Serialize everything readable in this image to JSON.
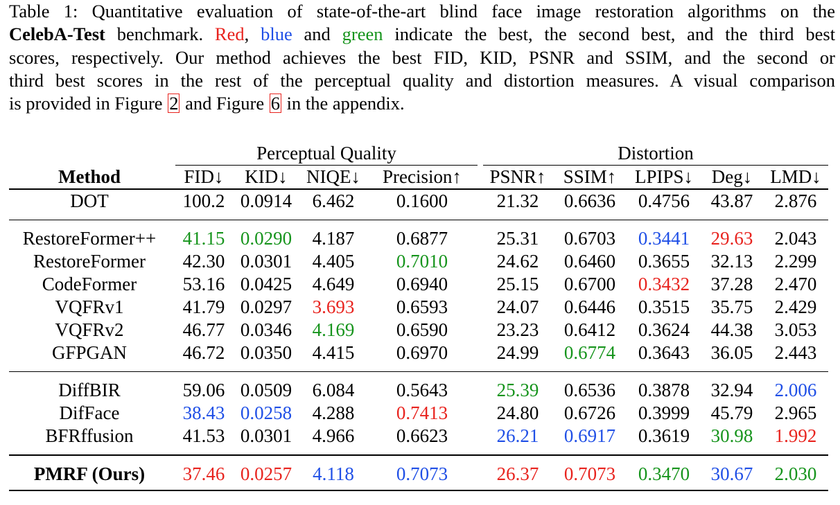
{
  "caption": {
    "label": "Table 1:",
    "line1_rest": "Quantitative evaluation of state-of-the-art blind face image restoration algorithms on the",
    "benchmark": "CelebA-Test",
    "line2_a": "benchmark.",
    "word_red": "Red",
    "comma": ",",
    "word_blue": "blue",
    "and": "and",
    "word_green": "green",
    "line2_b": "indicate the best, the second best, and the third best",
    "line3": "scores, respectively. Our method achieves the best FID, KID, PSNR and SSIM, and the second or",
    "line4": "third best scores in the rest of the perceptual quality and distortion measures. A visual comparison",
    "line5_a": "is provided in Figure",
    "fig_ref_1": "2",
    "line5_b": "and Figure",
    "fig_ref_2": "6",
    "line5_c": "in the appendix."
  },
  "colors": {
    "red": "#e8231e",
    "blue": "#1f4fe6",
    "green": "#16941c"
  },
  "table": {
    "group_headers": {
      "perceptual": "Perceptual Quality",
      "distortion": "Distortion"
    },
    "columns": {
      "method": "Method",
      "fid": "FID↓",
      "kid": "KID↓",
      "niqe": "NIQE↓",
      "precision": "Precision↑",
      "psnr": "PSNR↑",
      "ssim": "SSIM↑",
      "lpips": "LPIPS↓",
      "deg": "Deg↓",
      "lmd": "LMD↓"
    },
    "rows": [
      {
        "method": "DOT",
        "fid": "100.2",
        "kid": "0.0914",
        "niqe": "6.462",
        "precision": "0.1600",
        "psnr": "21.32",
        "ssim": "0.6636",
        "lpips": "0.4756",
        "deg": "43.87",
        "lmd": "2.876"
      },
      {
        "method": "RestoreFormer++",
        "fid": "41.15",
        "kid": "0.0290",
        "niqe": "4.187",
        "precision": "0.6877",
        "psnr": "25.31",
        "ssim": "0.6703",
        "lpips": "0.3441",
        "deg": "29.63",
        "lmd": "2.043"
      },
      {
        "method": "RestoreFormer",
        "fid": "42.30",
        "kid": "0.0301",
        "niqe": "4.405",
        "precision": "0.7010",
        "psnr": "24.62",
        "ssim": "0.6460",
        "lpips": "0.3655",
        "deg": "32.13",
        "lmd": "2.299"
      },
      {
        "method": "CodeFormer",
        "fid": "53.16",
        "kid": "0.0425",
        "niqe": "4.649",
        "precision": "0.6940",
        "psnr": "25.15",
        "ssim": "0.6700",
        "lpips": "0.3432",
        "deg": "37.28",
        "lmd": "2.470"
      },
      {
        "method": "VQFRv1",
        "fid": "41.79",
        "kid": "0.0297",
        "niqe": "3.693",
        "precision": "0.6593",
        "psnr": "24.07",
        "ssim": "0.6446",
        "lpips": "0.3515",
        "deg": "35.75",
        "lmd": "2.429"
      },
      {
        "method": "VQFRv2",
        "fid": "46.77",
        "kid": "0.0346",
        "niqe": "4.169",
        "precision": "0.6590",
        "psnr": "23.23",
        "ssim": "0.6412",
        "lpips": "0.3624",
        "deg": "44.38",
        "lmd": "3.053"
      },
      {
        "method": "GFPGAN",
        "fid": "46.72",
        "kid": "0.0350",
        "niqe": "4.415",
        "precision": "0.6970",
        "psnr": "24.99",
        "ssim": "0.6774",
        "lpips": "0.3643",
        "deg": "36.05",
        "lmd": "2.443"
      },
      {
        "method": "DiffBIR",
        "fid": "59.06",
        "kid": "0.0509",
        "niqe": "6.084",
        "precision": "0.5643",
        "psnr": "25.39",
        "ssim": "0.6536",
        "lpips": "0.3878",
        "deg": "32.94",
        "lmd": "2.006"
      },
      {
        "method": "DifFace",
        "fid": "38.43",
        "kid": "0.0258",
        "niqe": "4.288",
        "precision": "0.7413",
        "psnr": "24.80",
        "ssim": "0.6726",
        "lpips": "0.3999",
        "deg": "45.79",
        "lmd": "2.965"
      },
      {
        "method": "BFRffusion",
        "fid": "41.53",
        "kid": "0.0301",
        "niqe": "4.966",
        "precision": "0.6623",
        "psnr": "26.21",
        "ssim": "0.6917",
        "lpips": "0.3619",
        "deg": "30.98",
        "lmd": "1.992"
      },
      {
        "method": "PMRF (Ours)",
        "fid": "37.46",
        "kid": "0.0257",
        "niqe": "4.118",
        "precision": "0.7073",
        "psnr": "26.37",
        "ssim": "0.7073",
        "lpips": "0.3470",
        "deg": "30.67",
        "lmd": "2.030"
      }
    ],
    "highlights": {
      "1": {
        "fid": "green",
        "kid": "green",
        "lpips": "blue",
        "deg": "red"
      },
      "2": {
        "precision": "green"
      },
      "3": {
        "lpips": "red"
      },
      "4": {
        "niqe": "red"
      },
      "5": {
        "niqe": "green"
      },
      "6": {
        "ssim": "green"
      },
      "7": {
        "psnr": "green",
        "lmd": "blue"
      },
      "8": {
        "fid": "blue",
        "kid": "blue",
        "precision": "red"
      },
      "9": {
        "psnr": "blue",
        "ssim": "blue",
        "deg": "green",
        "lmd": "red"
      },
      "10": {
        "fid": "red",
        "kid": "red",
        "niqe": "blue",
        "precision": "blue",
        "psnr": "red",
        "ssim": "red",
        "lpips": "green",
        "deg": "blue",
        "lmd": "green"
      }
    }
  }
}
